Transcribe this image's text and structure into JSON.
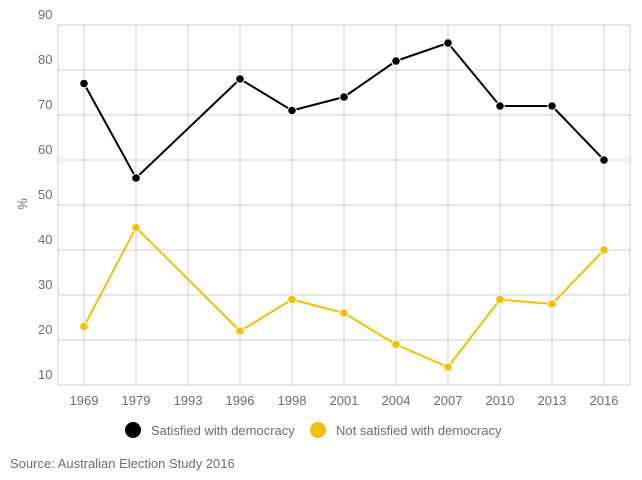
{
  "chart_data": {
    "type": "line",
    "categories": [
      "1969",
      "1979",
      "1993",
      "1996",
      "1998",
      "2001",
      "2004",
      "2007",
      "2010",
      "2013",
      "2016"
    ],
    "series": [
      {
        "name": "Satisfied with democracy",
        "color": "#000000",
        "values": [
          77,
          56,
          null,
          78,
          71,
          74,
          82,
          86,
          72,
          72,
          60
        ]
      },
      {
        "name": "Not satisfied with democracy",
        "color": "#f5c000",
        "values": [
          23,
          45,
          null,
          22,
          29,
          26,
          19,
          14,
          29,
          28,
          40
        ]
      }
    ],
    "ylabel": "%",
    "xlabel": "",
    "ylim": [
      10,
      90
    ],
    "yticks": [
      "10",
      "20",
      "30",
      "40",
      "50",
      "60",
      "70",
      "80",
      "90"
    ],
    "grid": true,
    "legend_position": "bottom"
  },
  "source": "Source: Australian Election Study 2016"
}
